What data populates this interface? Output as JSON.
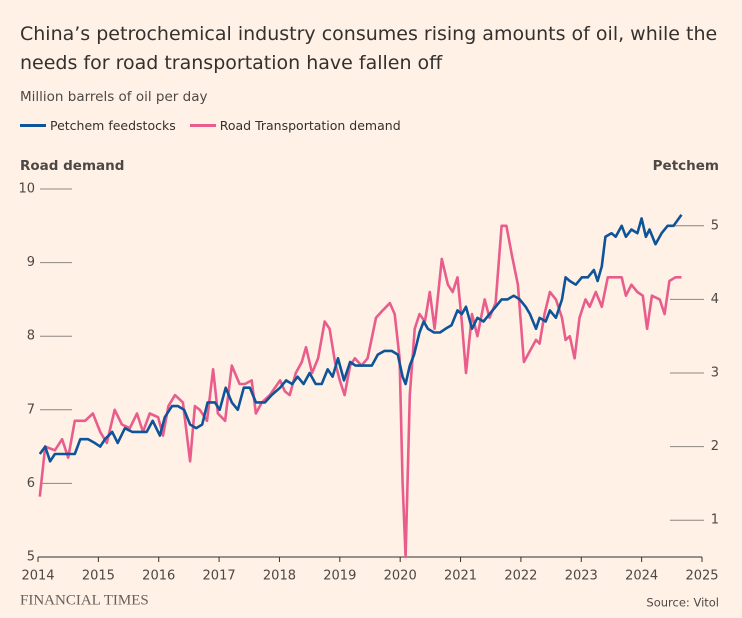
{
  "chart_data": {
    "type": "line",
    "title": "China’s petrochemical industry consumes rising amounts of oil, while the needs for road transportation have fallen off",
    "subtitle": "Million barrels of oil per day",
    "y_label": "Road demand",
    "y2_label": "Petchem",
    "source": "Source: Vitol",
    "brand": "FINANCIAL TIMES",
    "xlim": [
      2014,
      2025
    ],
    "xticks": [
      2014,
      2015,
      2016,
      2017,
      2018,
      2019,
      2020,
      2021,
      2022,
      2023,
      2024,
      2025
    ],
    "ylim": [
      5,
      10
    ],
    "yticks": [
      5,
      6,
      7,
      8,
      9,
      10
    ],
    "y2lim": [
      0.5,
      5.5
    ],
    "y2ticks": [
      1,
      2,
      3,
      4,
      5
    ],
    "series": [
      {
        "name": "Petchem feedstocks",
        "color": "#0f5499",
        "axis": "y2",
        "x": [
          2014.03,
          2014.12,
          2014.2,
          2014.28,
          2014.45,
          2014.61,
          2014.7,
          2014.83,
          2014.94,
          2015.03,
          2015.11,
          2015.23,
          2015.32,
          2015.44,
          2015.56,
          2015.69,
          2015.8,
          2015.9,
          2016.02,
          2016.1,
          2016.22,
          2016.32,
          2016.42,
          2016.52,
          2016.62,
          2016.72,
          2016.81,
          2016.93,
          2017.01,
          2017.11,
          2017.21,
          2017.31,
          2017.41,
          2017.51,
          2017.61,
          2017.76,
          2017.87,
          2018.01,
          2018.11,
          2018.21,
          2018.3,
          2018.4,
          2018.5,
          2018.6,
          2018.7,
          2018.8,
          2018.88,
          2018.97,
          2019.07,
          2019.17,
          2019.26,
          2019.41,
          2019.53,
          2019.63,
          2019.74,
          2019.86,
          2019.96,
          2020.04,
          2020.09,
          2020.16,
          2020.23,
          2020.32,
          2020.39,
          2020.46,
          2020.56,
          2020.66,
          2020.75,
          2020.85,
          2020.95,
          2021.02,
          2021.09,
          2021.19,
          2021.28,
          2021.38,
          2021.48,
          2021.58,
          2021.68,
          2021.78,
          2021.88,
          2021.98,
          2022.08,
          2022.15,
          2022.25,
          2022.31,
          2022.41,
          2022.48,
          2022.58,
          2022.68,
          2022.74,
          2022.81,
          2022.91,
          2023.01,
          2023.11,
          2023.21,
          2023.27,
          2023.34,
          2023.4,
          2023.5,
          2023.57,
          2023.67,
          2023.74,
          2023.83,
          2023.93,
          2024.0,
          2024.07,
          2024.13,
          2024.23,
          2024.33,
          2024.43,
          2024.53,
          2024.66
        ],
        "values": [
          1.9,
          2.0,
          1.8,
          1.9,
          1.9,
          1.9,
          2.1,
          2.1,
          2.05,
          2.0,
          2.1,
          2.2,
          2.05,
          2.25,
          2.2,
          2.2,
          2.2,
          2.35,
          2.15,
          2.4,
          2.55,
          2.55,
          2.5,
          2.3,
          2.25,
          2.3,
          2.6,
          2.6,
          2.5,
          2.8,
          2.6,
          2.5,
          2.8,
          2.8,
          2.6,
          2.6,
          2.7,
          2.8,
          2.9,
          2.85,
          2.95,
          2.85,
          3.0,
          2.85,
          2.85,
          3.05,
          2.95,
          3.2,
          2.9,
          3.15,
          3.1,
          3.1,
          3.1,
          3.25,
          3.3,
          3.3,
          3.25,
          2.95,
          2.85,
          3.1,
          3.25,
          3.55,
          3.7,
          3.6,
          3.55,
          3.55,
          3.6,
          3.65,
          3.85,
          3.8,
          3.9,
          3.6,
          3.75,
          3.7,
          3.8,
          3.9,
          4.0,
          4.0,
          4.05,
          4.0,
          3.9,
          3.8,
          3.6,
          3.75,
          3.7,
          3.85,
          3.75,
          4.0,
          4.3,
          4.25,
          4.2,
          4.3,
          4.3,
          4.4,
          4.25,
          4.45,
          4.85,
          4.9,
          4.85,
          5.0,
          4.85,
          4.95,
          4.9,
          5.1,
          4.85,
          4.95,
          4.75,
          4.9,
          5.0,
          5.0,
          5.15
        ]
      },
      {
        "name": "Road Transportation demand",
        "color": "#e95d8c",
        "x": [
          2014.03,
          2014.12,
          2014.28,
          2014.4,
          2014.5,
          2014.61,
          2014.78,
          2014.91,
          2015.03,
          2015.14,
          2015.27,
          2015.39,
          2015.52,
          2015.64,
          2015.74,
          2015.85,
          2015.99,
          2016.07,
          2016.16,
          2016.27,
          2016.4,
          2016.52,
          2016.6,
          2016.68,
          2016.8,
          2016.9,
          2016.98,
          2017.1,
          2017.21,
          2017.34,
          2017.43,
          2017.54,
          2017.61,
          2017.71,
          2017.84,
          2018.01,
          2018.09,
          2018.17,
          2018.27,
          2018.37,
          2018.44,
          2018.54,
          2018.64,
          2018.75,
          2018.83,
          2018.92,
          2019.0,
          2019.08,
          2019.17,
          2019.25,
          2019.36,
          2019.46,
          2019.6,
          2019.71,
          2019.83,
          2019.91,
          2019.99,
          2020.04,
          2020.09,
          2020.16,
          2020.24,
          2020.32,
          2020.41,
          2020.49,
          2020.57,
          2020.69,
          2020.79,
          2020.87,
          2020.95,
          2021.02,
          2021.09,
          2021.19,
          2021.28,
          2021.4,
          2021.48,
          2021.58,
          2021.68,
          2021.76,
          2021.85,
          2021.95,
          2022.05,
          2022.15,
          2022.25,
          2022.31,
          2022.39,
          2022.48,
          2022.58,
          2022.68,
          2022.74,
          2022.81,
          2022.89,
          2022.97,
          2023.07,
          2023.14,
          2023.24,
          2023.34,
          2023.44,
          2023.57,
          2023.67,
          2023.74,
          2023.83,
          2023.93,
          2024.02,
          2024.09,
          2024.17,
          2024.3,
          2024.38,
          2024.46,
          2024.56,
          2024.66
        ],
        "values": [
          5.82,
          6.5,
          6.45,
          6.6,
          6.35,
          6.85,
          6.85,
          6.95,
          6.7,
          6.55,
          7.0,
          6.8,
          6.75,
          6.95,
          6.7,
          6.95,
          6.9,
          6.65,
          7.05,
          7.2,
          7.1,
          6.3,
          7.05,
          7.0,
          6.85,
          7.55,
          6.95,
          6.85,
          7.6,
          7.35,
          7.35,
          7.4,
          6.95,
          7.1,
          7.2,
          7.4,
          7.25,
          7.2,
          7.5,
          7.65,
          7.85,
          7.5,
          7.7,
          8.2,
          8.1,
          7.65,
          7.4,
          7.2,
          7.6,
          7.7,
          7.6,
          7.7,
          8.25,
          8.35,
          8.45,
          8.3,
          7.7,
          6.0,
          5.0,
          7.2,
          8.1,
          8.3,
          8.2,
          8.6,
          8.1,
          9.05,
          8.7,
          8.6,
          8.8,
          8.2,
          7.5,
          8.3,
          8.0,
          8.5,
          8.25,
          8.45,
          9.5,
          9.5,
          9.1,
          8.7,
          7.65,
          7.8,
          7.95,
          7.9,
          8.3,
          8.6,
          8.5,
          8.25,
          7.95,
          8.0,
          7.7,
          8.25,
          8.5,
          8.4,
          8.6,
          8.4,
          8.8,
          8.8,
          8.8,
          8.55,
          8.7,
          8.6,
          8.55,
          8.1,
          8.55,
          8.5,
          8.3,
          8.75,
          8.8,
          8.8
        ]
      }
    ]
  }
}
